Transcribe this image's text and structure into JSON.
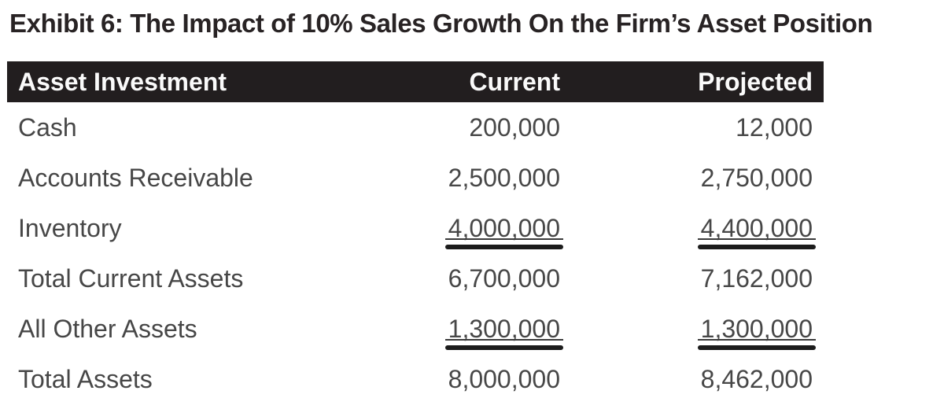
{
  "title": "Exhibit 6: The Impact of 10% Sales Growth On the Firm’s Asset Position",
  "table": {
    "columns": [
      "Asset Investment",
      "Current",
      "Projected"
    ],
    "rows": [
      {
        "label": "Cash",
        "current": "200,000",
        "projected": "12,000",
        "double_rule": false
      },
      {
        "label": "Accounts Receivable",
        "current": "2,500,000",
        "projected": "2,750,000",
        "double_rule": false
      },
      {
        "label": "Inventory",
        "current": "4,000,000",
        "projected": "4,400,000",
        "double_rule": true
      },
      {
        "label": "Total Current Assets",
        "current": "6,700,000",
        "projected": "7,162,000",
        "double_rule": false
      },
      {
        "label": "All Other Assets",
        "current": "1,300,000",
        "projected": "1,300,000",
        "double_rule": true
      },
      {
        "label": "Total Assets",
        "current": "8,000,000",
        "projected": "8,462,000",
        "double_rule": false
      }
    ]
  },
  "colors": {
    "header_bg": "#221e1f",
    "header_text": "#fafafa",
    "title_text": "#282324",
    "body_text": "#474747",
    "rule_thin": "#3a3a3a",
    "rule_thick": "#1c1c1c"
  }
}
